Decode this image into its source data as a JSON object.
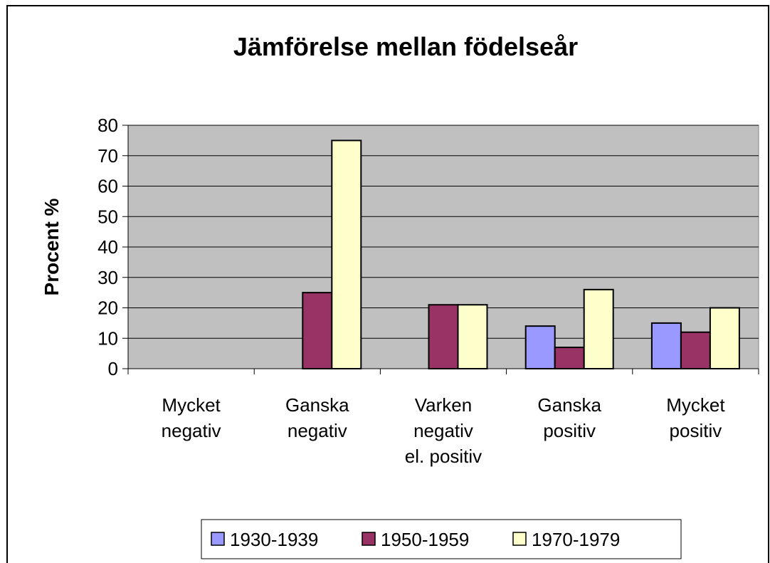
{
  "chart_data": {
    "type": "bar",
    "title": "Jämförelse mellan födelseår",
    "y_label": "Procent %",
    "categories": [
      "Mycket\nnegativ",
      "Ganska\nnegativ",
      "Varken\nnegativ\nel. positiv",
      "Ganska\npositiv",
      "Mycket\npositiv"
    ],
    "series": [
      {
        "name": "1930-1939",
        "color": "#9999ff",
        "values": [
          0,
          0,
          0,
          14,
          15
        ]
      },
      {
        "name": "1950-1959",
        "color": "#993366",
        "values": [
          0,
          25,
          21,
          7,
          12
        ]
      },
      {
        "name": "1970-1979",
        "color": "#ffffcc",
        "values": [
          0,
          75,
          21,
          26,
          20
        ]
      }
    ],
    "ylim": [
      0,
      80
    ],
    "yticks": [
      0,
      10,
      20,
      30,
      40,
      50,
      60,
      70,
      80
    ],
    "grid": true,
    "legend": "bottom",
    "plot_background": "#c0c0c0"
  }
}
